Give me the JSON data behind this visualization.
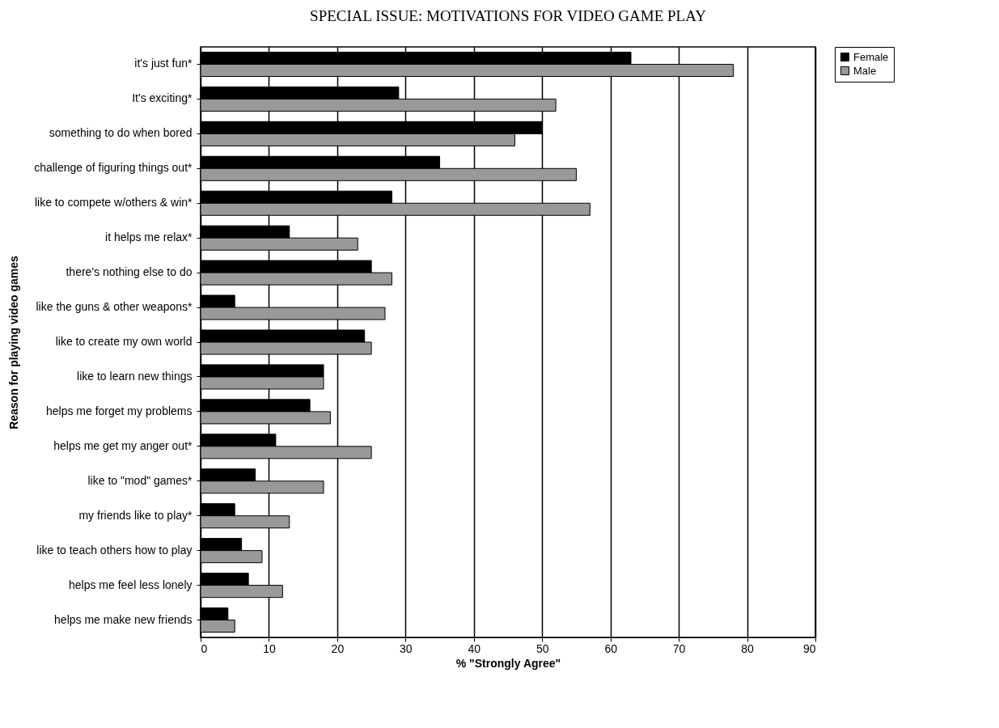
{
  "chart_data": {
    "type": "bar",
    "orientation": "horizontal",
    "title": "SPECIAL ISSUE: MOTIVATIONS FOR VIDEO GAME PLAY",
    "xlabel": "% \"Strongly Agree\"",
    "ylabel": "Reason for playing video games",
    "categories": [
      "it's just fun*",
      "It's exciting*",
      "something to do when bored",
      "challenge of figuring things out*",
      "like to compete w/others & win*",
      "it helps me relax*",
      "there's nothing else to do",
      "like the guns & other weapons*",
      "like to create my own world",
      "like to learn new things",
      "helps me forget my problems",
      "helps me get my anger out*",
      "like to \"mod\" games*",
      "my friends like to play*",
      "like to teach others how to play",
      "helps me feel less lonely",
      "helps me make new friends"
    ],
    "series": [
      {
        "name": "Female",
        "color": "#000000",
        "values": [
          63,
          29,
          50,
          35,
          28,
          13,
          25,
          5,
          24,
          18,
          16,
          11,
          8,
          5,
          6,
          7,
          4
        ]
      },
      {
        "name": "Male",
        "color": "#999999",
        "values": [
          78,
          52,
          46,
          55,
          57,
          23,
          28,
          27,
          25,
          18,
          19,
          25,
          18,
          13,
          9,
          12,
          5
        ]
      }
    ],
    "xlim": [
      0,
      90
    ],
    "xticks": [
      0,
      10,
      20,
      30,
      40,
      50,
      60,
      70,
      80,
      90
    ],
    "grid": "x",
    "legend": "right"
  }
}
